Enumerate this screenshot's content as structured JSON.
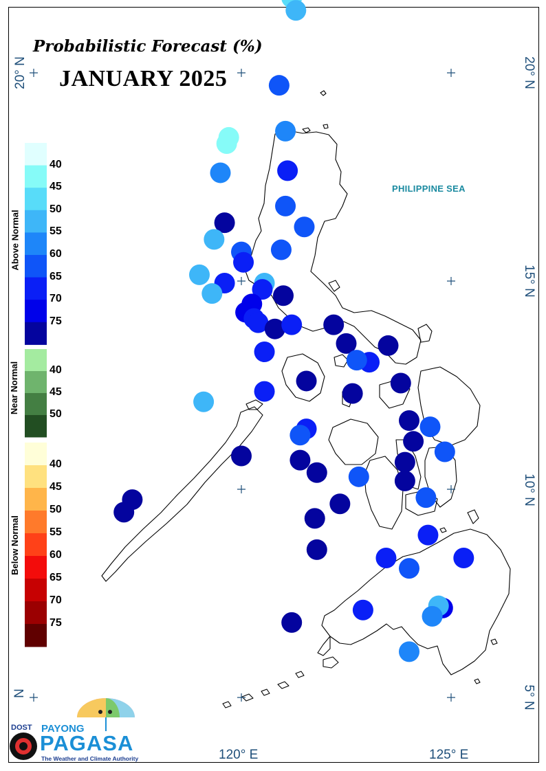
{
  "title": "Probabilistic Forecast (%)",
  "month": "JANUARY 2025",
  "sea_label": "PHILIPPINE SEA",
  "lat_labels": [
    "20° N",
    "15° N",
    "10° N",
    "5° N"
  ],
  "lat_labels_left": [
    "20° N",
    "N"
  ],
  "lon_labels": [
    "120° E",
    "125° E"
  ],
  "legend": {
    "above": {
      "title": "Above Normal",
      "ticks": [
        "40",
        "45",
        "50",
        "55",
        "60",
        "65",
        "70",
        "75"
      ],
      "colors": [
        "#e0ffff",
        "#86fbf8",
        "#58dcf9",
        "#3eb6f8",
        "#1e86f9",
        "#0f55f8",
        "#0a1ff6",
        "#0001ea",
        "#04049e"
      ]
    },
    "near": {
      "title": "Near Normal",
      "ticks": [
        "40",
        "45",
        "50"
      ],
      "colors": [
        "#a4eba0",
        "#6fb46d",
        "#447f43",
        "#224e22"
      ]
    },
    "below": {
      "title": "Below Normal",
      "ticks": [
        "40",
        "45",
        "50",
        "55",
        "60",
        "65",
        "70",
        "75"
      ],
      "colors": [
        "#fffed8",
        "#ffe17f",
        "#ffb54a",
        "#ff7a2b",
        "#ff4118",
        "#f30c0b",
        "#c70102",
        "#9b0001",
        "#600000"
      ]
    }
  },
  "logo": {
    "dost": "DOST",
    "payong": "PAYONG",
    "pagasa": "PAGASA",
    "tagline": "The Weather and Climate Authority"
  },
  "stations": [
    {
      "lon": 121.2,
      "lat": 21.8,
      "color": "#58dcf9"
    },
    {
      "lon": 121.3,
      "lat": 21.5,
      "color": "#3eb6f8"
    },
    {
      "lon": 120.9,
      "lat": 19.7,
      "color": "#0f55f8"
    },
    {
      "lon": 121.05,
      "lat": 18.6,
      "color": "#1e86f9"
    },
    {
      "lon": 119.7,
      "lat": 18.45,
      "color": "#86fbf8"
    },
    {
      "lon": 119.65,
      "lat": 18.3,
      "color": "#86fbf8"
    },
    {
      "lon": 121.1,
      "lat": 17.65,
      "color": "#0a1ff6"
    },
    {
      "lon": 119.5,
      "lat": 17.6,
      "color": "#1e86f9"
    },
    {
      "lon": 121.05,
      "lat": 16.8,
      "color": "#0f55f8"
    },
    {
      "lon": 119.6,
      "lat": 16.4,
      "color": "#04049e"
    },
    {
      "lon": 121.5,
      "lat": 16.3,
      "color": "#0f55f8"
    },
    {
      "lon": 119.35,
      "lat": 16.0,
      "color": "#3eb6f8"
    },
    {
      "lon": 120.0,
      "lat": 15.7,
      "color": "#0f55f8"
    },
    {
      "lon": 120.95,
      "lat": 15.75,
      "color": "#0f55f8"
    },
    {
      "lon": 120.05,
      "lat": 15.45,
      "color": "#0a1ff6"
    },
    {
      "lon": 119.0,
      "lat": 15.15,
      "color": "#3eb6f8"
    },
    {
      "lon": 119.6,
      "lat": 14.95,
      "color": "#0a1ff6"
    },
    {
      "lon": 120.55,
      "lat": 14.95,
      "color": "#3eb6f8"
    },
    {
      "lon": 119.3,
      "lat": 14.7,
      "color": "#3eb6f8"
    },
    {
      "lon": 120.5,
      "lat": 14.8,
      "color": "#0a1ff6"
    },
    {
      "lon": 120.25,
      "lat": 14.45,
      "color": "#0001ea"
    },
    {
      "lon": 121.0,
      "lat": 14.65,
      "color": "#04049e"
    },
    {
      "lon": 120.1,
      "lat": 14.25,
      "color": "#0001ea"
    },
    {
      "lon": 120.3,
      "lat": 14.1,
      "color": "#0a1ff6"
    },
    {
      "lon": 120.4,
      "lat": 14.0,
      "color": "#0a1ff6"
    },
    {
      "lon": 120.8,
      "lat": 13.85,
      "color": "#04049e"
    },
    {
      "lon": 121.2,
      "lat": 13.95,
      "color": "#0a1ff6"
    },
    {
      "lon": 122.2,
      "lat": 13.95,
      "color": "#04049e"
    },
    {
      "lon": 120.55,
      "lat": 13.3,
      "color": "#0a1ff6"
    },
    {
      "lon": 122.5,
      "lat": 13.5,
      "color": "#04049e"
    },
    {
      "lon": 123.5,
      "lat": 13.45,
      "color": "#04049e"
    },
    {
      "lon": 123.05,
      "lat": 13.05,
      "color": "#0a1ff6"
    },
    {
      "lon": 122.75,
      "lat": 13.1,
      "color": "#0f55f8"
    },
    {
      "lon": 121.55,
      "lat": 12.6,
      "color": "#04049e"
    },
    {
      "lon": 123.8,
      "lat": 12.55,
      "color": "#04049e"
    },
    {
      "lon": 120.55,
      "lat": 12.35,
      "color": "#0a1ff6"
    },
    {
      "lon": 122.65,
      "lat": 12.3,
      "color": "#04049e"
    },
    {
      "lon": 119.1,
      "lat": 12.1,
      "color": "#3eb6f8"
    },
    {
      "lon": 124.0,
      "lat": 11.65,
      "color": "#04049e"
    },
    {
      "lon": 124.5,
      "lat": 11.5,
      "color": "#0f55f8"
    },
    {
      "lon": 121.55,
      "lat": 11.45,
      "color": "#0a1ff6"
    },
    {
      "lon": 121.4,
      "lat": 11.3,
      "color": "#0f55f8"
    },
    {
      "lon": 124.1,
      "lat": 11.15,
      "color": "#04049e"
    },
    {
      "lon": 124.85,
      "lat": 10.9,
      "color": "#0f55f8"
    },
    {
      "lon": 120.0,
      "lat": 10.8,
      "color": "#04049e"
    },
    {
      "lon": 121.4,
      "lat": 10.7,
      "color": "#04049e"
    },
    {
      "lon": 123.9,
      "lat": 10.65,
      "color": "#04049e"
    },
    {
      "lon": 121.8,
      "lat": 10.4,
      "color": "#04049e"
    },
    {
      "lon": 122.8,
      "lat": 10.3,
      "color": "#0f55f8"
    },
    {
      "lon": 123.9,
      "lat": 10.2,
      "color": "#04049e"
    },
    {
      "lon": 124.4,
      "lat": 9.8,
      "color": "#0f55f8"
    },
    {
      "lon": 122.35,
      "lat": 9.65,
      "color": "#04049e"
    },
    {
      "lon": 117.4,
      "lat": 9.75,
      "color": "#04049e"
    },
    {
      "lon": 117.2,
      "lat": 9.45,
      "color": "#04049e"
    },
    {
      "lon": 121.75,
      "lat": 9.3,
      "color": "#04049e"
    },
    {
      "lon": 124.45,
      "lat": 8.9,
      "color": "#0a1ff6"
    },
    {
      "lon": 121.8,
      "lat": 8.55,
      "color": "#04049e"
    },
    {
      "lon": 123.45,
      "lat": 8.35,
      "color": "#0a1ff6"
    },
    {
      "lon": 125.3,
      "lat": 8.35,
      "color": "#0a1ff6"
    },
    {
      "lon": 124.0,
      "lat": 8.1,
      "color": "#0f55f8"
    },
    {
      "lon": 124.8,
      "lat": 7.15,
      "color": "#0001ea"
    },
    {
      "lon": 124.7,
      "lat": 7.2,
      "color": "#3eb6f8"
    },
    {
      "lon": 122.9,
      "lat": 7.1,
      "color": "#0a1ff6"
    },
    {
      "lon": 124.55,
      "lat": 6.95,
      "color": "#1e86f9"
    },
    {
      "lon": 121.2,
      "lat": 6.8,
      "color": "#04049e"
    },
    {
      "lon": 124.0,
      "lat": 6.1,
      "color": "#1e86f9"
    }
  ]
}
